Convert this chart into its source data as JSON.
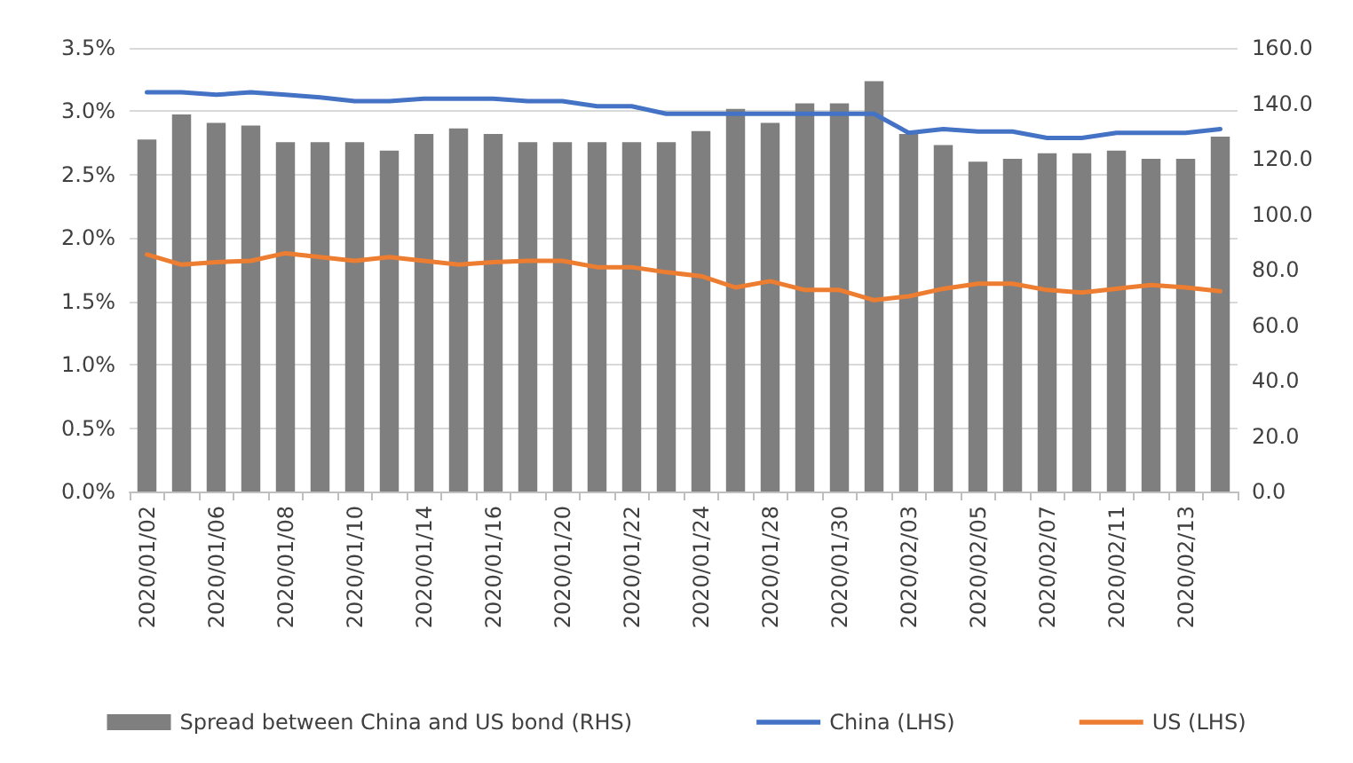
{
  "chart_data": {
    "type": "bar",
    "categories": [
      "2020/01/02",
      null,
      "2020/01/06",
      null,
      "2020/01/08",
      null,
      "2020/01/10",
      null,
      "2020/01/14",
      null,
      "2020/01/16",
      null,
      "2020/01/20",
      null,
      "2020/01/22",
      null,
      "2020/01/24",
      null,
      "2020/01/28",
      null,
      "2020/01/30",
      null,
      "2020/02/03",
      null,
      "2020/02/05",
      null,
      "2020/02/07",
      null,
      "2020/02/11",
      null,
      "2020/02/13",
      null
    ],
    "series": [
      {
        "name": "Spread between China and US bond (RHS)",
        "axis": "y2",
        "color": "#7f7f7f",
        "values": [
          127,
          136,
          133,
          132,
          126,
          126,
          126,
          123,
          129,
          131,
          129,
          126,
          126,
          126,
          126,
          126,
          130,
          138,
          133,
          140,
          140,
          148,
          129,
          125,
          119,
          120,
          122,
          122,
          123,
          120,
          120,
          128
        ]
      },
      {
        "name": "China (LHS)",
        "type": "line",
        "color": "#4472c4",
        "values": [
          3.15,
          3.15,
          3.13,
          3.15,
          3.13,
          3.11,
          3.08,
          3.08,
          3.1,
          3.1,
          3.1,
          3.08,
          3.08,
          3.04,
          3.04,
          2.98,
          2.98,
          2.98,
          2.98,
          2.98,
          2.98,
          2.98,
          2.83,
          2.86,
          2.84,
          2.84,
          2.79,
          2.79,
          2.83,
          2.83,
          2.83,
          2.86
        ]
      },
      {
        "name": "US (LHS)",
        "type": "line",
        "color": "#ed7d31",
        "values": [
          1.87,
          1.79,
          1.81,
          1.82,
          1.88,
          1.85,
          1.82,
          1.85,
          1.82,
          1.79,
          1.81,
          1.82,
          1.82,
          1.77,
          1.77,
          1.73,
          1.7,
          1.61,
          1.66,
          1.59,
          1.59,
          1.51,
          1.54,
          1.6,
          1.64,
          1.64,
          1.59,
          1.57,
          1.6,
          1.63,
          1.61,
          1.58
        ]
      }
    ],
    "ylim": [
      0,
      3.5
    ],
    "yticks": [
      {
        "value": 0,
        "label": "0.0%"
      },
      {
        "value": 0.5,
        "label": "0.5%"
      },
      {
        "value": 1,
        "label": "1.0%"
      },
      {
        "value": 1.5,
        "label": "1.5%"
      },
      {
        "value": 2,
        "label": "2.0%"
      },
      {
        "value": 2.5,
        "label": "2.5%"
      },
      {
        "value": 3,
        "label": "3.0%"
      },
      {
        "value": 3.5,
        "label": "3.5%"
      }
    ],
    "y2lim": [
      0,
      160
    ],
    "y2ticks": [
      {
        "value": 0,
        "label": "0.0"
      },
      {
        "value": 20,
        "label": "20.0"
      },
      {
        "value": 40,
        "label": "40.0"
      },
      {
        "value": 60,
        "label": "60.0"
      },
      {
        "value": 80,
        "label": "80.0"
      },
      {
        "value": 100,
        "label": "100.0"
      },
      {
        "value": 120,
        "label": "120.0"
      },
      {
        "value": 140,
        "label": "140.0"
      },
      {
        "value": 160,
        "label": "160.0"
      }
    ],
    "grid": "y",
    "legend": "bottom",
    "marker": "none",
    "line_style": "solid"
  }
}
